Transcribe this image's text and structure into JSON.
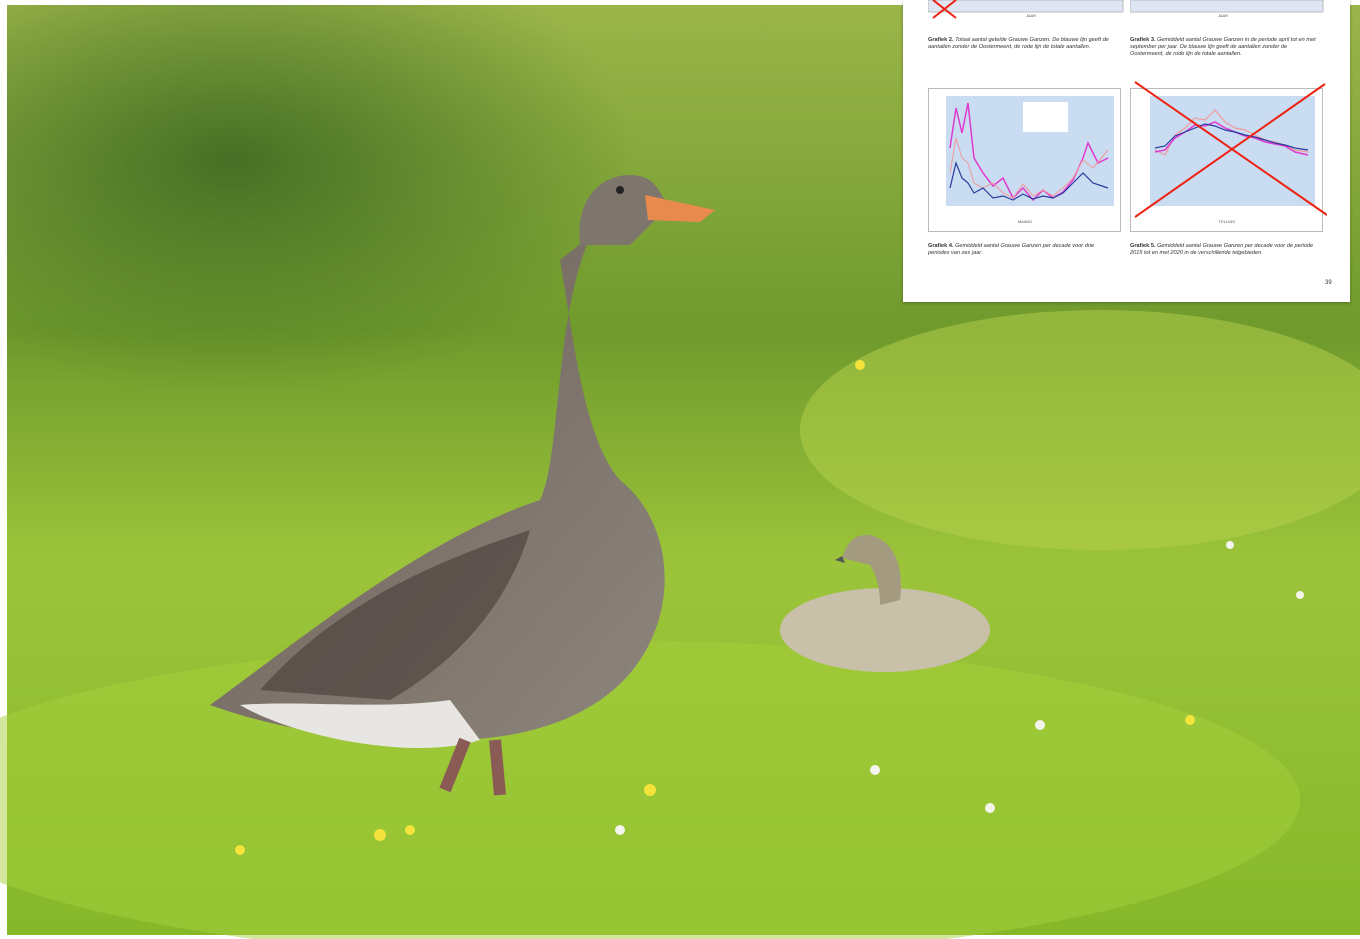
{
  "page": {
    "figures": [
      {
        "label": "Grafiek 2.",
        "caption": "Totaal aantal getelde Grauwe Ganzen. De blauwe lijn geeft de aantallen zonder de Oostermeent, de rode lijn de totale aantallen.",
        "axis_label": "JAAR"
      },
      {
        "label": "Grafiek 3.",
        "caption": "Gemiddeld aantal Grauwe Ganzen in de periode april tot en met september per jaar. De blauwe lijn geeft de aantallen zonder de Oostermeent, de rode lijn de totale aantallen.",
        "axis_label": "JAAR"
      },
      {
        "label": "Grafiek 4.",
        "caption": "Gemiddeld aantal Grauwe Ganzen per decade voor drie periodes van zes jaar.",
        "axis_label": "MAAND"
      },
      {
        "label": "Grafiek 5.",
        "caption": "Gemiddeld aantal Grauwe Ganzen per decade voor de periode 2015 tot en met 2020 in de verschillende telgebieden.",
        "axis_label": "TELLING"
      }
    ],
    "page_number": "39"
  }
}
